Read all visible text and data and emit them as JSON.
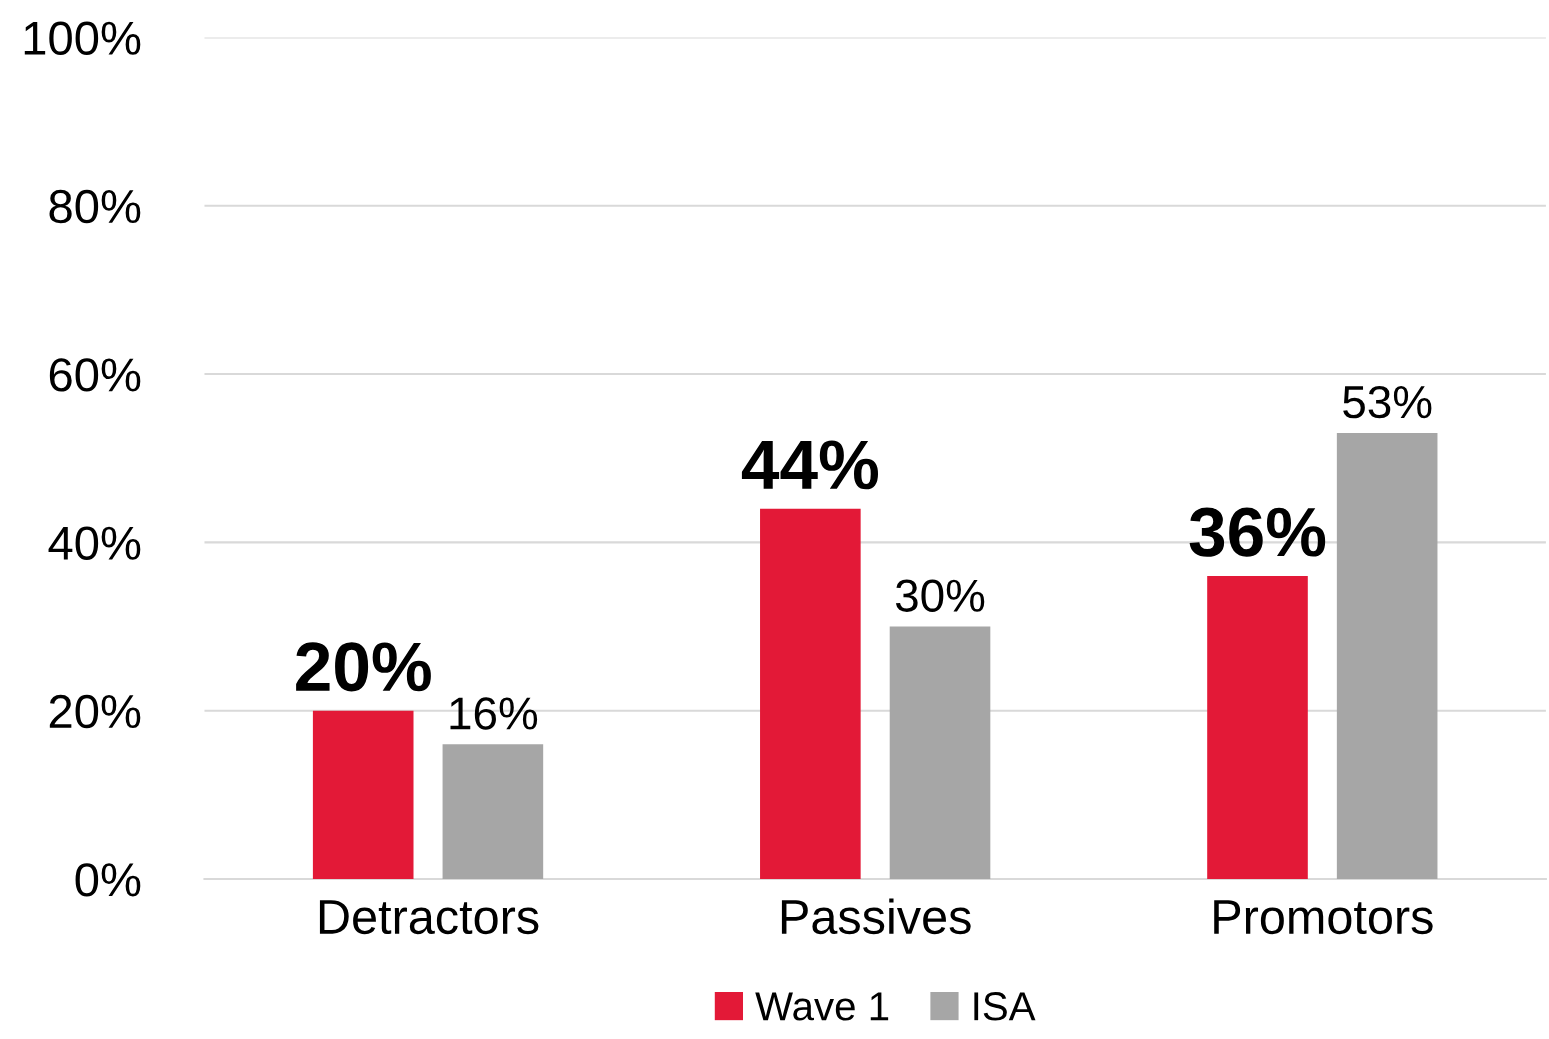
{
  "chart_data": {
    "type": "bar",
    "categories": [
      "Detractors",
      "Passives",
      "Promotors"
    ],
    "series": [
      {
        "name": "Wave 1",
        "color": "#e31937",
        "values": [
          20,
          44,
          36
        ]
      },
      {
        "name": "ISA",
        "color": "#a6a6a6",
        "values": [
          16,
          30,
          53
        ]
      }
    ],
    "ylim": [
      0,
      100
    ],
    "yticks": [
      {
        "value": 0,
        "label": "0%"
      },
      {
        "value": 20,
        "label": "20%"
      },
      {
        "value": 40,
        "label": "40%"
      },
      {
        "value": 60,
        "label": "60%"
      },
      {
        "value": 80,
        "label": "80%"
      },
      {
        "value": 100,
        "label": "100%"
      }
    ],
    "value_labels": [
      [
        "20%",
        "44%",
        "36%"
      ],
      [
        "16%",
        "30%",
        "53%"
      ]
    ],
    "grid": "y",
    "legend": "bottom"
  }
}
